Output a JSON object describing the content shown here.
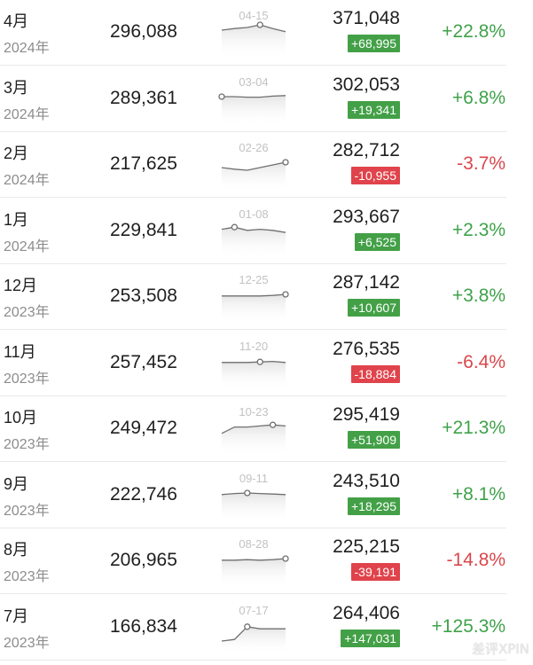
{
  "colors": {
    "positive": "#3fa24a",
    "negative": "#d9474b",
    "badge_positive": "#43a047",
    "badge_negative": "#e0434b"
  },
  "rows": [
    {
      "month": "4月",
      "year": "2024年",
      "base": "296,088",
      "spark_date": "04-15",
      "spark_values": [
        0.45,
        0.42,
        0.4,
        0.35,
        0.42,
        0.48
      ],
      "spark_marker": 3,
      "current": "371,048",
      "diff": "+68,995",
      "diff_dir": "pos",
      "pct": "+22.8%"
    },
    {
      "month": "3月",
      "year": "2024年",
      "base": "289,361",
      "spark_date": "03-04",
      "spark_values": [
        0.45,
        0.45,
        0.46,
        0.46,
        0.44,
        0.43
      ],
      "spark_marker": 0,
      "current": "302,053",
      "diff": "+19,341",
      "diff_dir": "pos",
      "pct": "+6.8%"
    },
    {
      "month": "2月",
      "year": "2024年",
      "base": "217,625",
      "spark_date": "02-26",
      "spark_values": [
        0.55,
        0.58,
        0.6,
        0.55,
        0.5,
        0.45
      ],
      "spark_marker": 5,
      "current": "282,712",
      "diff": "-10,955",
      "diff_dir": "neg",
      "pct": "-3.7%"
    },
    {
      "month": "1月",
      "year": "2024年",
      "base": "229,841",
      "spark_date": "01-08",
      "spark_values": [
        0.46,
        0.42,
        0.48,
        0.46,
        0.48,
        0.52
      ],
      "spark_marker": 1,
      "current": "293,667",
      "diff": "+6,525",
      "diff_dir": "pos",
      "pct": "+2.3%"
    },
    {
      "month": "12月",
      "year": "2023年",
      "base": "253,508",
      "spark_date": "12-25",
      "spark_values": [
        0.48,
        0.48,
        0.48,
        0.48,
        0.47,
        0.45
      ],
      "spark_marker": 5,
      "current": "287,142",
      "diff": "+10,607",
      "diff_dir": "pos",
      "pct": "+3.8%"
    },
    {
      "month": "11月",
      "year": "2023年",
      "base": "257,452",
      "spark_date": "11-20",
      "spark_values": [
        0.48,
        0.48,
        0.48,
        0.47,
        0.46,
        0.48
      ],
      "spark_marker": 3,
      "current": "276,535",
      "diff": "-18,884",
      "diff_dir": "neg",
      "pct": "-6.4%"
    },
    {
      "month": "10月",
      "year": "2023年",
      "base": "249,472",
      "spark_date": "10-23",
      "spark_values": [
        0.58,
        0.46,
        0.46,
        0.44,
        0.42,
        0.44
      ],
      "spark_marker": 4,
      "current": "295,419",
      "diff": "+51,909",
      "diff_dir": "pos",
      "pct": "+21.3%"
    },
    {
      "month": "9月",
      "year": "2023年",
      "base": "222,746",
      "spark_date": "09-11",
      "spark_values": [
        0.48,
        0.46,
        0.45,
        0.46,
        0.47,
        0.48
      ],
      "spark_marker": 2,
      "current": "243,510",
      "diff": "+18,295",
      "diff_dir": "pos",
      "pct": "+8.1%"
    },
    {
      "month": "8月",
      "year": "2023年",
      "base": "206,965",
      "spark_date": "08-28",
      "spark_values": [
        0.48,
        0.48,
        0.47,
        0.48,
        0.47,
        0.45
      ],
      "spark_marker": 5,
      "current": "225,215",
      "diff": "-39,191",
      "diff_dir": "neg",
      "pct": "-14.8%"
    },
    {
      "month": "7月",
      "year": "2023年",
      "base": "166,834",
      "spark_date": "07-17",
      "spark_values": [
        0.75,
        0.72,
        0.48,
        0.52,
        0.52,
        0.52
      ],
      "spark_marker": 2,
      "current": "264,406",
      "diff": "+147,031",
      "diff_dir": "pos",
      "pct": "+125.3%"
    }
  ],
  "watermark": "差评XPIN"
}
